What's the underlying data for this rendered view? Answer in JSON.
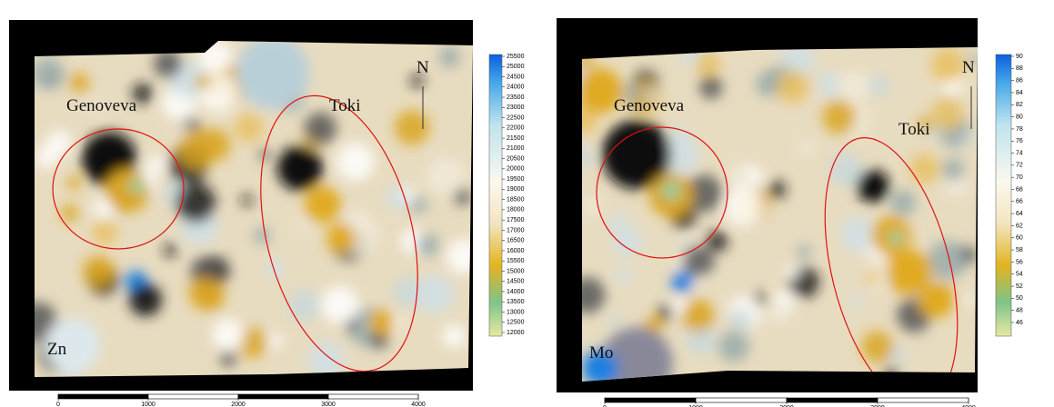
{
  "panels": [
    {
      "element": "Zn",
      "labels": [
        "Genoveva",
        "Toki"
      ],
      "north": "N",
      "colorbar_ticks": [
        12000,
        12500,
        13000,
        13500,
        14000,
        14500,
        15000,
        15500,
        16000,
        16500,
        17000,
        17500,
        18000,
        18500,
        19000,
        19500,
        20000,
        20500,
        21000,
        21500,
        22000,
        22500,
        23000,
        23500,
        24000,
        24500,
        25000,
        25500
      ],
      "scale_ticks": [
        0,
        1000,
        2000,
        3000,
        4000
      ]
    },
    {
      "element": "Mo",
      "labels": [
        "Genoveva",
        "Toki"
      ],
      "north": "N",
      "colorbar_ticks": [
        46,
        48,
        50,
        52,
        54,
        56,
        58,
        60,
        62,
        64,
        66,
        68,
        70,
        72,
        74,
        76,
        78,
        80,
        82,
        84,
        86,
        88,
        90
      ],
      "scale_ticks": [
        0,
        1000,
        2000,
        3000,
        4000
      ]
    }
  ]
}
